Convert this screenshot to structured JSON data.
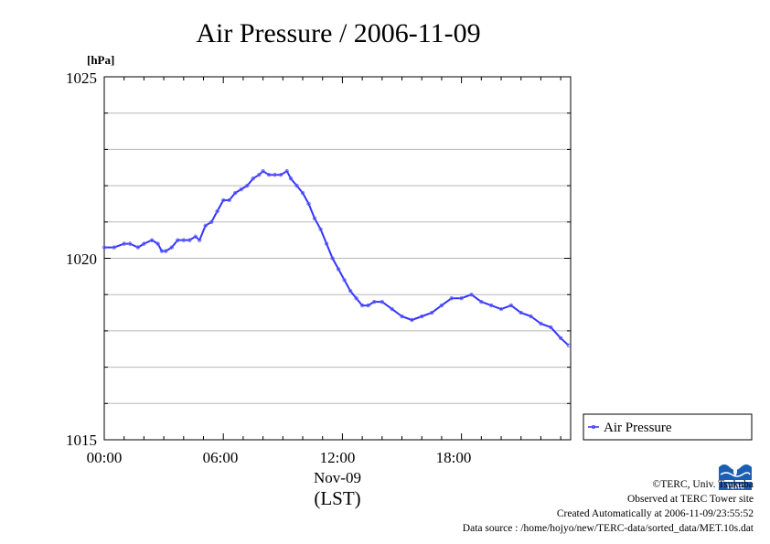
{
  "chart_data": {
    "type": "line",
    "title": "Air Pressure / 2006-11-09",
    "y_unit": "[hPa]",
    "ylim": [
      1015,
      1025
    ],
    "y_ticks": [
      "1015",
      "1020",
      "1025"
    ],
    "x_ticks": [
      "00:00",
      "06:00",
      "12:00",
      "18:00"
    ],
    "x_date": "Nov-09",
    "x_label": "(LST)",
    "xlim_hours": [
      0,
      23.5
    ],
    "grid": true,
    "legend_position": "right",
    "series": [
      {
        "name": "Air Pressure",
        "color": "#3333ff",
        "x_hours": [
          0.0,
          0.5,
          1.0,
          1.3,
          1.7,
          2.0,
          2.4,
          2.7,
          2.9,
          3.1,
          3.4,
          3.7,
          4.0,
          4.3,
          4.6,
          4.8,
          5.1,
          5.4,
          5.7,
          6.0,
          6.3,
          6.6,
          6.9,
          7.2,
          7.5,
          7.8,
          8.0,
          8.3,
          8.6,
          8.9,
          9.2,
          9.4,
          9.7,
          10.0,
          10.3,
          10.6,
          10.9,
          11.2,
          11.5,
          11.8,
          12.1,
          12.4,
          12.7,
          13.0,
          13.3,
          13.6,
          14.0,
          14.5,
          15.0,
          15.5,
          16.0,
          16.5,
          17.0,
          17.5,
          18.0,
          18.5,
          19.0,
          19.5,
          20.0,
          20.5,
          21.0,
          21.5,
          22.0,
          22.5,
          23.0,
          23.4
        ],
        "values": [
          1020.3,
          1020.3,
          1020.4,
          1020.4,
          1020.3,
          1020.4,
          1020.5,
          1020.4,
          1020.2,
          1020.2,
          1020.3,
          1020.5,
          1020.5,
          1020.5,
          1020.6,
          1020.5,
          1020.9,
          1021.0,
          1021.3,
          1021.6,
          1021.6,
          1021.8,
          1021.9,
          1022.0,
          1022.2,
          1022.3,
          1022.4,
          1022.3,
          1022.3,
          1022.3,
          1022.4,
          1022.2,
          1022.0,
          1021.8,
          1021.5,
          1021.1,
          1020.8,
          1020.4,
          1020.0,
          1019.7,
          1019.4,
          1019.1,
          1018.9,
          1018.7,
          1018.7,
          1018.8,
          1018.8,
          1018.6,
          1018.4,
          1018.3,
          1018.4,
          1018.5,
          1018.7,
          1018.9,
          1018.9,
          1019.0,
          1018.8,
          1018.7,
          1018.6,
          1018.7,
          1018.5,
          1018.4,
          1018.2,
          1018.1,
          1017.8,
          1017.6
        ]
      }
    ]
  },
  "credits": {
    "copyright": "©TERC, Univ. Tsukuba",
    "observed": "Observed at TERC Tower site",
    "created": "Created Automatically at 2006-11-09/23:55:52",
    "source": "Data source : /home/hojyo/new/TERC-data/sorted_data/MET.10s.dat"
  },
  "logo_text": "TERC",
  "logo_color": "#1a5fb4"
}
